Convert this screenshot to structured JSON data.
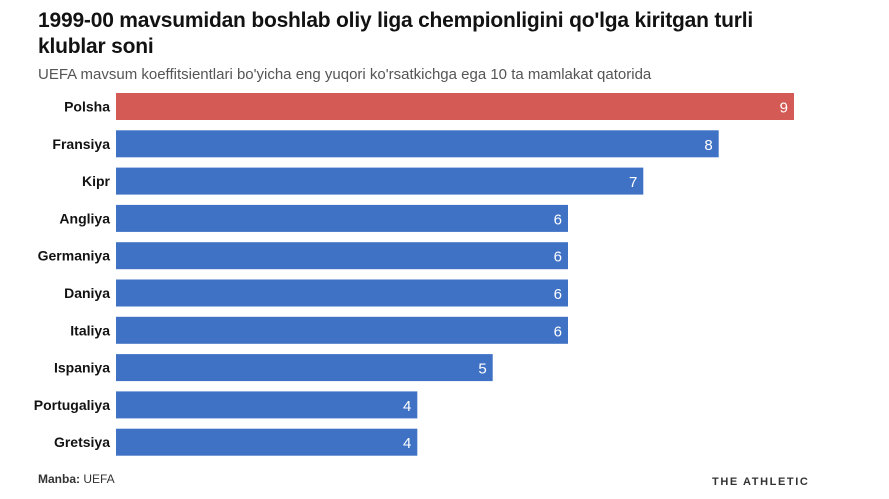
{
  "header": {
    "title": "1999-00 mavsumidan boshlab oliy liga chempionligini qo'lga kiritgan turli klublar soni",
    "subtitle": "UEFA mavsum koeffitsientlari bo'yicha eng yuqori ko'rsatkichga ega 10 ta mamlakat qatorida"
  },
  "footer": {
    "source_label": "Manba:",
    "source_value": "UEFA",
    "brand": "THE ATHLETIC"
  },
  "colors": {
    "highlight": "#d45b55",
    "default": "#3f72c5",
    "value_label": "#ffffff",
    "category_label": "#121212"
  },
  "chart_data": {
    "type": "bar",
    "orientation": "horizontal",
    "categories": [
      "Polsha",
      "Fransiya",
      "Kipr",
      "Angliya",
      "Germaniya",
      "Daniya",
      "Italiya",
      "Ispaniya",
      "Portugaliya",
      "Gretsiya"
    ],
    "values": [
      9,
      8,
      7,
      6,
      6,
      6,
      6,
      5,
      4,
      4
    ],
    "highlighted": [
      "Polsha"
    ],
    "xlim": [
      0,
      9
    ],
    "grid": false,
    "legend": "none",
    "data_labels": true
  }
}
